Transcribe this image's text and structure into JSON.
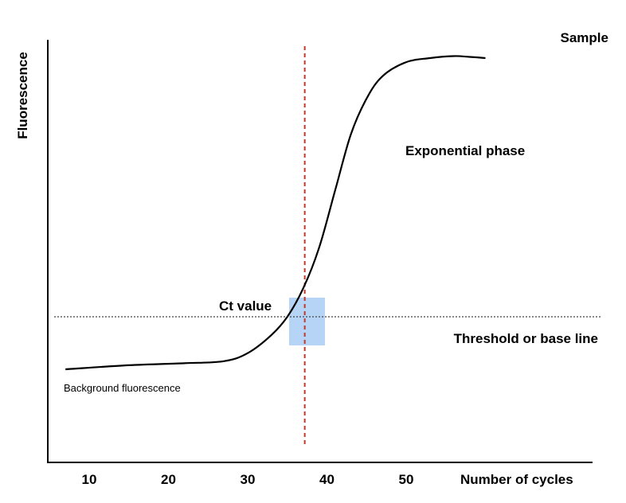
{
  "chart_data": {
    "type": "line",
    "ylabel": "Fluorescence",
    "xlabel": "Number of cycles",
    "x_ticks": [
      10,
      20,
      30,
      40,
      50
    ],
    "xlim": [
      5.5,
      59
    ],
    "ylim": [
      0,
      100
    ],
    "series": [
      {
        "name": "Sample",
        "x": [
          7,
          15,
          22,
          27,
          30,
          33,
          35,
          37,
          39,
          41,
          43,
          45,
          47,
          50,
          53,
          56,
          58,
          60
        ],
        "y": [
          22,
          23,
          23.5,
          24,
          26,
          30.5,
          35,
          42,
          52,
          66,
          80,
          89,
          94.5,
          98,
          99,
          99.5,
          99.3,
          99
        ]
      }
    ],
    "threshold": {
      "label": "Threshold or base line",
      "y": 35
    },
    "ct": {
      "label": "Ct value",
      "x": 37.2
    },
    "annotations": {
      "exponential": "Exponential phase",
      "background": "Background fluorescence",
      "sample": "Sample"
    },
    "colors": {
      "curve": "#000000",
      "threshold": "#444444",
      "ct_line": "#c0392b",
      "ct_box": "#a9cdf5"
    }
  }
}
